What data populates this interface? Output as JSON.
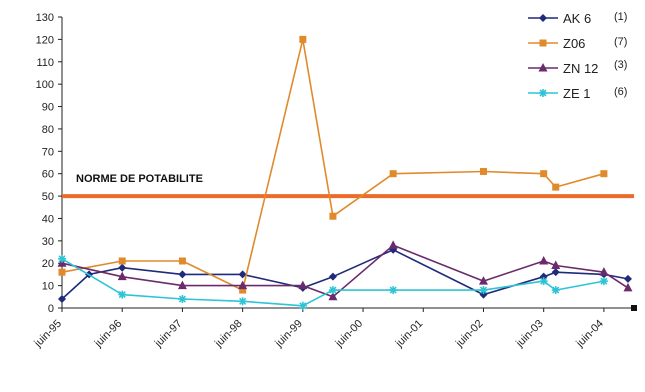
{
  "chart_data": {
    "type": "line",
    "x": [
      "juin-95",
      "juin-96",
      "juin-97",
      "juin-98",
      "juin-99",
      "juin-00",
      "juin-01",
      "juin-02",
      "juin-03",
      "juin-04"
    ],
    "ylim": [
      0,
      130
    ],
    "yticks": [
      0,
      10,
      20,
      30,
      40,
      50,
      60,
      70,
      80,
      90,
      100,
      110,
      120,
      130
    ],
    "grid": false,
    "legend_position": "top-right",
    "reference_line": {
      "value": 50,
      "label": "NORME DE POTABILITE",
      "color": "#ea6b2a"
    },
    "series": [
      {
        "name": "AK 6",
        "count": "(1)",
        "color": "#1f2a7a",
        "marker": "diamond",
        "points": [
          {
            "x": 1995.45,
            "y": 4
          },
          {
            "x": 1995.9,
            "y": 15
          },
          {
            "x": 1996.45,
            "y": 18
          },
          {
            "x": 1997.45,
            "y": 15
          },
          {
            "x": 1998.45,
            "y": 15
          },
          {
            "x": 1999.45,
            "y": 9
          },
          {
            "x": 1999.95,
            "y": 14
          },
          {
            "x": 2000.95,
            "y": 26
          },
          {
            "x": 2002.45,
            "y": 6
          },
          {
            "x": 2003.45,
            "y": 14
          },
          {
            "x": 2003.65,
            "y": 16
          },
          {
            "x": 2004.45,
            "y": 15
          },
          {
            "x": 2004.85,
            "y": 13
          }
        ]
      },
      {
        "name": "Z06",
        "count": "(7)",
        "color": "#e08a2c",
        "marker": "square",
        "points": [
          {
            "x": 1995.45,
            "y": 16
          },
          {
            "x": 1996.45,
            "y": 21
          },
          {
            "x": 1997.45,
            "y": 21
          },
          {
            "x": 1998.45,
            "y": 8
          },
          {
            "x": 1999.45,
            "y": 120
          },
          {
            "x": 1999.95,
            "y": 41
          },
          {
            "x": 2000.95,
            "y": 60
          },
          {
            "x": 2002.45,
            "y": 61
          },
          {
            "x": 2003.45,
            "y": 60
          },
          {
            "x": 2003.65,
            "y": 54
          },
          {
            "x": 2004.45,
            "y": 60
          }
        ]
      },
      {
        "name": "ZN 12",
        "count": "(3)",
        "color": "#6b2a6b",
        "marker": "triangle",
        "points": [
          {
            "x": 1995.45,
            "y": 20
          },
          {
            "x": 1996.45,
            "y": 14
          },
          {
            "x": 1997.45,
            "y": 10
          },
          {
            "x": 1998.45,
            "y": 10
          },
          {
            "x": 1999.45,
            "y": 10
          },
          {
            "x": 1999.95,
            "y": 5
          },
          {
            "x": 2000.95,
            "y": 28
          },
          {
            "x": 2002.45,
            "y": 12
          },
          {
            "x": 2003.45,
            "y": 21
          },
          {
            "x": 2003.65,
            "y": 19
          },
          {
            "x": 2004.45,
            "y": 16
          },
          {
            "x": 2004.85,
            "y": 9
          }
        ]
      },
      {
        "name": "ZE 1",
        "count": "(6)",
        "color": "#2ec4d6",
        "marker": "star",
        "points": [
          {
            "x": 1995.45,
            "y": 22
          },
          {
            "x": 1996.45,
            "y": 6
          },
          {
            "x": 1997.45,
            "y": 4
          },
          {
            "x": 1998.45,
            "y": 3
          },
          {
            "x": 1999.45,
            "y": 1
          },
          {
            "x": 1999.95,
            "y": 8
          },
          {
            "x": 2000.95,
            "y": 8
          },
          {
            "x": 2002.45,
            "y": 8
          },
          {
            "x": 2003.45,
            "y": 12
          },
          {
            "x": 2003.65,
            "y": 8
          },
          {
            "x": 2004.45,
            "y": 12
          }
        ]
      }
    ]
  }
}
